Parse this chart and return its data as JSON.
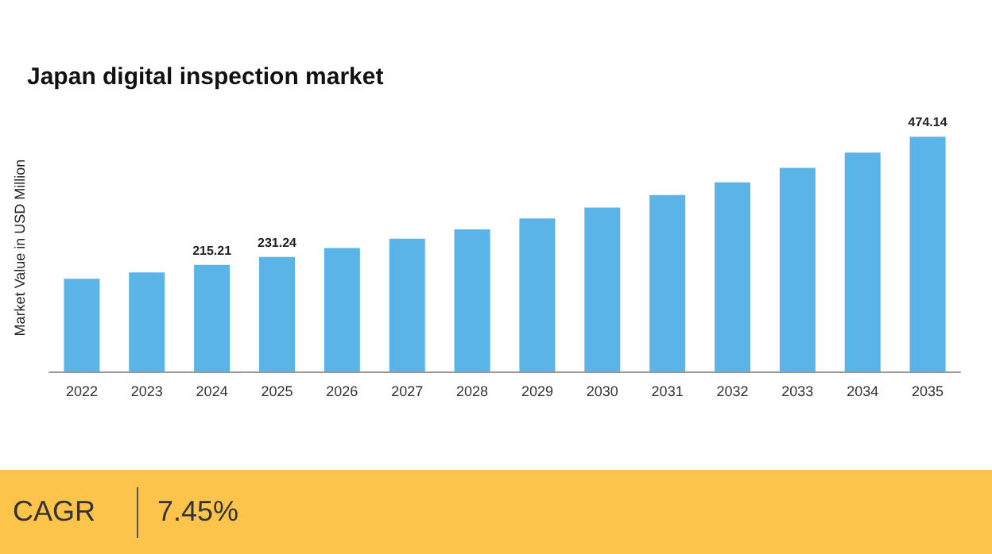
{
  "chart_data": {
    "type": "bar",
    "title": "Japan digital inspection market",
    "ylabel": "Market Value in USD Million",
    "categories": [
      "2022",
      "2023",
      "2024",
      "2025",
      "2026",
      "2027",
      "2028",
      "2029",
      "2030",
      "2031",
      "2032",
      "2033",
      "2034",
      "2035"
    ],
    "values": [
      187,
      200,
      215.21,
      231.24,
      249,
      268,
      287,
      309,
      331,
      356,
      382,
      411,
      442,
      474.14
    ],
    "value_labels": [
      null,
      null,
      "215.21",
      "231.24",
      null,
      null,
      null,
      null,
      null,
      null,
      null,
      null,
      null,
      "474.14"
    ],
    "color": "#5ab4e8",
    "tick_labels": "x",
    "grid": false,
    "annotations": [
      "CAGR",
      "7.45%"
    ]
  }
}
